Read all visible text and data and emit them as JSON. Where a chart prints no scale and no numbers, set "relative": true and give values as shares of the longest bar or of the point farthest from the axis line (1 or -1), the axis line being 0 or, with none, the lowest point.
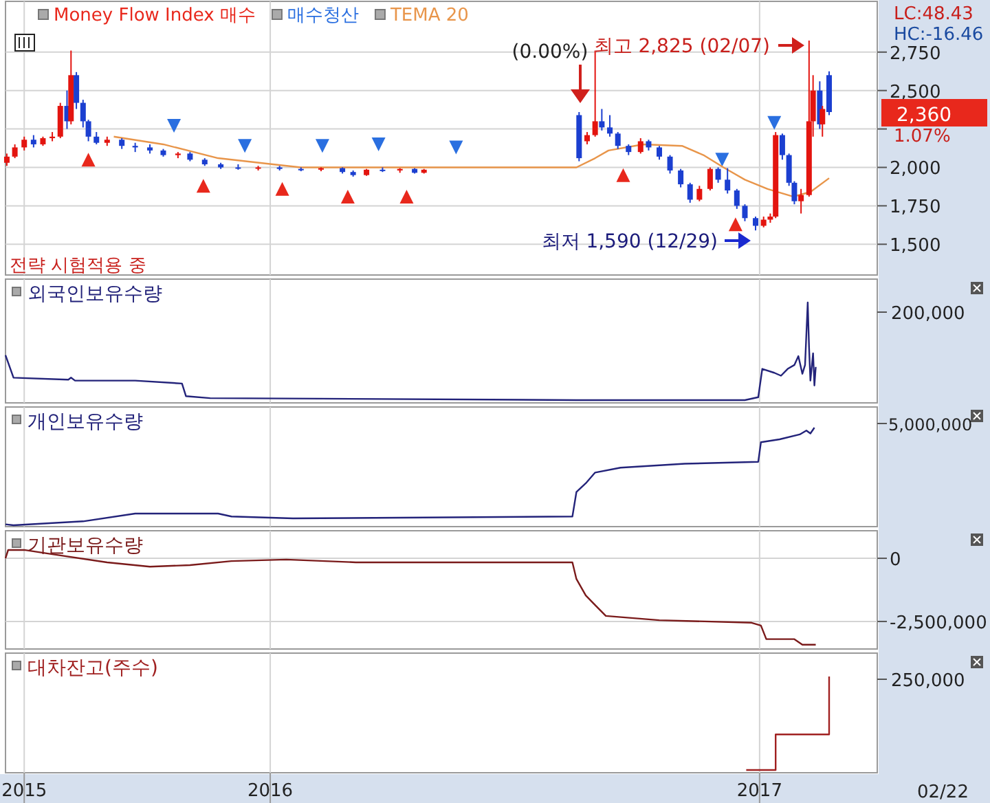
{
  "chart_data": [
    {
      "type": "candlestick",
      "legend": "top left",
      "grid": true,
      "tick_labels": "y",
      "x": [
        "2015-06-18",
        "2015-06-24",
        "2015-07-01",
        "2015-07-08",
        "2015-07-15",
        "2015-07-22",
        "2015-07-28",
        "2015-08-02",
        "2015-08-05",
        "2015-08-09",
        "2015-08-14",
        "2015-08-18",
        "2015-08-24",
        "2015-09-01",
        "2015-09-12",
        "2015-09-22",
        "2015-10-03",
        "2015-10-13",
        "2015-10-24",
        "2015-11-02",
        "2015-11-13",
        "2015-11-25",
        "2015-12-08",
        "2015-12-23",
        "2016-01-08",
        "2016-01-24",
        "2016-02-08",
        "2016-02-24",
        "2016-03-03",
        "2016-03-13",
        "2016-03-25",
        "2016-04-07",
        "2016-04-18",
        "2016-04-25",
        "2016-08-19",
        "2016-08-25",
        "2016-08-31",
        "2016-09-05",
        "2016-09-11",
        "2016-09-17",
        "2016-09-25",
        "2016-10-04",
        "2016-10-10",
        "2016-10-18",
        "2016-10-26",
        "2016-11-03",
        "2016-11-10",
        "2016-11-17",
        "2016-11-25",
        "2016-12-01",
        "2016-12-08",
        "2016-12-15",
        "2016-12-21",
        "2016-12-29",
        "2017-01-04",
        "2017-01-09",
        "2017-01-13",
        "2017-01-18",
        "2017-01-23",
        "2017-01-27",
        "2017-02-01",
        "2017-02-07",
        "2017-02-10",
        "2017-02-15",
        "2017-02-17",
        "2017-02-22"
      ],
      "ohlc": [
        [
          2030,
          2090,
          2010,
          2070
        ],
        [
          2070,
          2150,
          2060,
          2130
        ],
        [
          2130,
          2200,
          2110,
          2180
        ],
        [
          2180,
          2210,
          2130,
          2150
        ],
        [
          2150,
          2200,
          2140,
          2190
        ],
        [
          2190,
          2230,
          2170,
          2200
        ],
        [
          2200,
          2420,
          2190,
          2400
        ],
        [
          2400,
          2500,
          2250,
          2300
        ],
        [
          2300,
          2760,
          2280,
          2600
        ],
        [
          2600,
          2620,
          2380,
          2420
        ],
        [
          2420,
          2440,
          2260,
          2300
        ],
        [
          2300,
          2310,
          2170,
          2200
        ],
        [
          2200,
          2230,
          2150,
          2160
        ],
        [
          2160,
          2200,
          2140,
          2180
        ],
        [
          2180,
          2190,
          2120,
          2140
        ],
        [
          2140,
          2160,
          2100,
          2130
        ],
        [
          2130,
          2150,
          2090,
          2110
        ],
        [
          2110,
          2120,
          2070,
          2080
        ],
        [
          2080,
          2100,
          2060,
          2090
        ],
        [
          2090,
          2100,
          2040,
          2050
        ],
        [
          2050,
          2060,
          2010,
          2020
        ],
        [
          2020,
          2030,
          1990,
          2000
        ],
        [
          2000,
          2020,
          1985,
          1995
        ],
        [
          1995,
          2010,
          1980,
          2000
        ],
        [
          2000,
          2010,
          1980,
          1990
        ],
        [
          1990,
          2000,
          1975,
          1985
        ],
        [
          1985,
          2000,
          1975,
          1995
        ],
        [
          1995,
          2000,
          1960,
          1970
        ],
        [
          1970,
          1980,
          1940,
          1950
        ],
        [
          1950,
          1990,
          1945,
          1985
        ],
        [
          1985,
          2000,
          1970,
          1980
        ],
        [
          1980,
          1995,
          1965,
          1990
        ],
        [
          1990,
          1995,
          1960,
          1965
        ],
        [
          1965,
          1990,
          1960,
          1985
        ],
        [
          2340,
          2360,
          2040,
          2060
        ],
        [
          2170,
          2230,
          2150,
          2210
        ],
        [
          2210,
          2760,
          2200,
          2300
        ],
        [
          2300,
          2380,
          2240,
          2260
        ],
        [
          2260,
          2340,
          2200,
          2220
        ],
        [
          2220,
          2230,
          2120,
          2140
        ],
        [
          2140,
          2150,
          2080,
          2100
        ],
        [
          2100,
          2190,
          2090,
          2170
        ],
        [
          2170,
          2180,
          2110,
          2130
        ],
        [
          2130,
          2140,
          2050,
          2070
        ],
        [
          2070,
          2080,
          1960,
          1980
        ],
        [
          1980,
          1990,
          1870,
          1890
        ],
        [
          1890,
          1900,
          1770,
          1790
        ],
        [
          1790,
          1880,
          1780,
          1860
        ],
        [
          1860,
          2000,
          1850,
          1990
        ],
        [
          1990,
          2000,
          1900,
          1920
        ],
        [
          1920,
          1995,
          1830,
          1850
        ],
        [
          1850,
          1860,
          1730,
          1750
        ],
        [
          1750,
          1760,
          1650,
          1670
        ],
        [
          1670,
          1680,
          1590,
          1620
        ],
        [
          1620,
          1680,
          1610,
          1660
        ],
        [
          1660,
          1700,
          1640,
          1680
        ],
        [
          1680,
          2230,
          1670,
          2210
        ],
        [
          2210,
          2220,
          2050,
          2080
        ],
        [
          2080,
          2090,
          1880,
          1900
        ],
        [
          1900,
          1910,
          1760,
          1780
        ],
        [
          1780,
          1860,
          1700,
          1820
        ],
        [
          1820,
          2825,
          1810,
          2300
        ],
        [
          2300,
          2600,
          2200,
          2500
        ],
        [
          2500,
          2560,
          2250,
          2280
        ],
        [
          2280,
          2400,
          2200,
          2380
        ],
        [
          2600,
          2625,
          2340,
          2360
        ]
      ],
      "colors": [
        "#e3140f",
        "#e3140f",
        "#e3140f",
        "#1b3fd0",
        "#e3140f",
        "#e3140f",
        "#e3140f",
        "#1b3fd0",
        "#e3140f",
        "#1b3fd0",
        "#1b3fd0",
        "#1b3fd0",
        "#1b3fd0",
        "#e3140f",
        "#1b3fd0",
        "#1b3fd0",
        "#1b3fd0",
        "#1b3fd0",
        "#e3140f",
        "#1b3fd0",
        "#1b3fd0",
        "#1b3fd0",
        "#1b3fd0",
        "#e3140f",
        "#1b3fd0",
        "#1b3fd0",
        "#e3140f",
        "#1b3fd0",
        "#1b3fd0",
        "#e3140f",
        "#1b3fd0",
        "#e3140f",
        "#1b3fd0",
        "#e3140f",
        "#1b3fd0",
        "#e3140f",
        "#e3140f",
        "#1b3fd0",
        "#1b3fd0",
        "#1b3fd0",
        "#1b3fd0",
        "#e3140f",
        "#1b3fd0",
        "#1b3fd0",
        "#1b3fd0",
        "#1b3fd0",
        "#1b3fd0",
        "#e3140f",
        "#e3140f",
        "#1b3fd0",
        "#1b3fd0",
        "#1b3fd0",
        "#1b3fd0",
        "#1b3fd0",
        "#e3140f",
        "#e3140f",
        "#e3140f",
        "#1b3fd0",
        "#1b3fd0",
        "#1b3fd0",
        "#e3140f",
        "#e3140f",
        "#e3140f",
        "#1b3fd0",
        "#e3140f",
        "#1b3fd0"
      ],
      "series": [
        {
          "name": "Money Flow Index 매수",
          "type": "scatter",
          "marker": "triangle",
          "color": "#e8281c",
          "x": [
            "2015-08-18",
            "2015-11-12",
            "2016-01-10",
            "2016-02-28",
            "2016-04-12",
            "2016-09-21",
            "2016-12-14"
          ],
          "values": [
            2050,
            1880,
            1860,
            1810,
            1810,
            1950,
            1630
          ]
        },
        {
          "name": "매수청산",
          "type": "scatter",
          "marker": "triangle-down",
          "color": "#2a6fe0",
          "x": [
            "2015-10-21",
            "2015-12-13",
            "2016-02-09",
            "2016-03-22",
            "2016-05-19",
            "2016-12-04",
            "2017-01-12"
          ],
          "values": [
            2270,
            2140,
            2140,
            2150,
            2130,
            2050,
            2290
          ]
        },
        {
          "name": "TEMA 20",
          "type": "line",
          "color": "#e8954a",
          "x": [
            "2015-09-06",
            "2015-10-13",
            "2015-11-23",
            "2016-01-03",
            "2016-01-24",
            "2016-08-17",
            "2016-08-31",
            "2016-09-10",
            "2016-10-06",
            "2016-11-04",
            "2016-11-20",
            "2016-12-05",
            "2016-12-21",
            "2017-01-07",
            "2017-01-26",
            "2017-02-08",
            "2017-02-22"
          ],
          "values": [
            2200,
            2150,
            2060,
            2020,
            2000,
            2000,
            2060,
            2110,
            2150,
            2140,
            2080,
            2000,
            1920,
            1860,
            1810,
            1840,
            1930
          ]
        }
      ],
      "xlim": [
        "2015-06-17",
        "2017-03-30"
      ],
      "xticks": [
        {
          "value": "2015-07-01",
          "label": null
        },
        {
          "value": "2016-01-01",
          "label": null
        },
        {
          "value": "2017-01-01",
          "label": null
        }
      ],
      "ylim": [
        1300,
        3080
      ],
      "yticks": [
        {
          "value": 1500,
          "label": "1,500"
        },
        {
          "value": 1750,
          "label": "1,750"
        },
        {
          "value": 2000,
          "label": "2,000"
        },
        {
          "value": 2250,
          "label": null
        },
        {
          "value": 2500,
          "label": "2,500"
        },
        {
          "value": 2750,
          "label": "2,750"
        }
      ],
      "annotations": [
        "최고 2,825 (02/07)",
        "최저 1,590 (12/29)",
        "(0.00%)",
        "전략 시험적용 중",
        "LC:48.43",
        "HC:-16.46",
        "2,360",
        "1.07%"
      ]
    },
    {
      "type": "line",
      "title": "외국인보유수량",
      "relative": true,
      "grid": "x",
      "tick_labels": false,
      "xlim": [
        "2015-06-17",
        "2017-03-30"
      ],
      "xticks": [
        {
          "value": "2015-07-01",
          "label": null
        },
        {
          "value": "2016-01-01",
          "label": null
        },
        {
          "value": "2017-01-01",
          "label": null
        }
      ],
      "series": [
        {
          "color": "#23237a",
          "x": [
            "2015-06-17",
            "2015-06-23",
            "2015-08-03",
            "2015-08-05",
            "2015-08-08",
            "2015-09-22",
            "2015-10-27",
            "2015-10-30",
            "2015-11-17",
            "2016-02-08",
            "2016-08-17",
            "2016-12-21",
            "2016-12-31",
            "2017-01-03",
            "2017-01-12",
            "2017-01-17",
            "2017-01-22",
            "2017-01-27",
            "2017-01-30",
            "2017-02-02",
            "2017-02-04",
            "2017-02-06",
            "2017-02-07",
            "2017-02-08",
            "2017-02-10",
            "2017-02-11",
            "2017-02-12"
          ],
          "values": [
            0.46,
            0.23,
            0.21,
            0.23,
            0.2,
            0.2,
            0.17,
            0.04,
            0.02,
            0.015,
            0,
            0,
            0.03,
            0.32,
            0.28,
            0.25,
            0.32,
            0.36,
            0.45,
            0.27,
            0.36,
            1,
            0.54,
            0.2,
            0.48,
            0.15,
            0.34
          ]
        }
      ],
      "annotations": [
        "200,000"
      ]
    },
    {
      "type": "line",
      "title": "개인보유수량",
      "relative": true,
      "grid": "x",
      "tick_labels": false,
      "xlim": [
        "2015-06-17",
        "2017-03-30"
      ],
      "xticks": [
        {
          "value": "2015-07-01",
          "label": null
        },
        {
          "value": "2016-01-01",
          "label": null
        },
        {
          "value": "2017-01-01",
          "label": null
        }
      ],
      "series": [
        {
          "color": "#23237a",
          "x": [
            "2015-06-17",
            "2015-06-23",
            "2015-08-14",
            "2015-09-22",
            "2015-11-23",
            "2015-12-03",
            "2016-01-18",
            "2016-08-14",
            "2016-08-17",
            "2016-08-24",
            "2016-08-31",
            "2016-09-19",
            "2016-11-06",
            "2016-12-31",
            "2017-01-02",
            "2017-01-16",
            "2017-01-31",
            "2017-02-05",
            "2017-02-08",
            "2017-02-11"
          ],
          "values": [
            0.01,
            0,
            0.04,
            0.12,
            0.12,
            0.09,
            0.07,
            0.09,
            0.34,
            0.43,
            0.54,
            0.59,
            0.63,
            0.65,
            0.85,
            0.88,
            0.93,
            0.97,
            0.94,
            1
          ]
        }
      ],
      "annotations": [
        "5,000,000"
      ]
    },
    {
      "type": "line",
      "title": "기관보유수량",
      "grid": true,
      "tick_labels": "y",
      "xlim": [
        "2015-06-17",
        "2017-03-30"
      ],
      "xticks": [
        {
          "value": "2015-07-01",
          "label": null
        },
        {
          "value": "2016-01-01",
          "label": null
        },
        {
          "value": "2017-01-01",
          "label": null
        }
      ],
      "ylim": [
        -3590000,
        1090000
      ],
      "yticks": [
        0,
        {
          "value": -2500000,
          "label": "-2,500,000"
        }
      ],
      "series": [
        {
          "color": "#7a1a1a",
          "x": [
            "2015-06-17",
            "2015-06-19",
            "2015-07-01",
            "2015-07-22",
            "2015-09-01",
            "2015-10-03",
            "2015-11-02",
            "2015-12-03",
            "2016-01-13",
            "2016-03-05",
            "2016-08-14",
            "2016-08-17",
            "2016-08-24",
            "2016-08-31",
            "2016-09-08",
            "2016-10-18",
            "2016-12-26",
            "2017-01-02",
            "2017-01-06",
            "2017-01-27",
            "2017-02-02",
            "2017-02-12"
          ],
          "values": [
            0,
            330000,
            330000,
            160000,
            -160000,
            -330000,
            -270000,
            -110000,
            -50000,
            -160000,
            -160000,
            -820000,
            -1470000,
            -1850000,
            -2280000,
            -2450000,
            -2550000,
            -2660000,
            -3200000,
            -3200000,
            -3420000,
            -3420000
          ]
        }
      ]
    },
    {
      "type": "step",
      "title": "대차잔고(주수)",
      "relative": true,
      "grid": "x",
      "tick_labels": "x",
      "xlim": [
        "2015-06-17",
        "2017-03-30"
      ],
      "xticks": [
        {
          "value": "2015-07-01",
          "label": "2015"
        },
        {
          "value": "2016-01-01",
          "label": "2016"
        },
        {
          "value": "2017-01-01",
          "label": "2017"
        }
      ],
      "series": [
        {
          "color": "#a02020",
          "x": [
            "2016-12-22",
            "2017-01-13",
            "2017-02-22"
          ],
          "values": [
            0,
            0.38,
            1
          ]
        }
      ],
      "annotations": [
        "250,000",
        "02/22"
      ]
    }
  ]
}
